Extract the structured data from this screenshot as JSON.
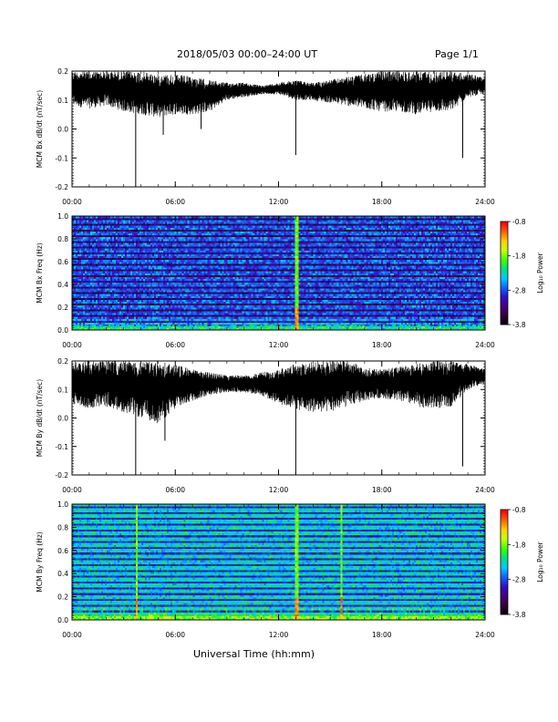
{
  "header": {
    "date_range": "2018/05/03   00:00–24:00 UT",
    "page": "Page 1/1"
  },
  "colors": {
    "trace": "#000000",
    "colormap": [
      "#000000",
      "#30003a",
      "#4a007a",
      "#3010c8",
      "#1060ff",
      "#00c8ff",
      "#00e080",
      "#40ff00",
      "#c8ff00",
      "#ffd000",
      "#ff6000",
      "#ff0000"
    ]
  },
  "chart_data": [
    {
      "type": "line",
      "panel": "bx-timeseries",
      "ylabel": "MCM Bx dB/dt (nT/sec)",
      "xlabel": "",
      "ylim": [
        -0.2,
        0.2
      ],
      "yticks": [
        "0.2",
        "0.1",
        "0.0",
        "-0.1",
        "-0.2"
      ],
      "xticks": [
        "00:00",
        "06:00",
        "12:00",
        "18:00",
        "24:00"
      ],
      "x_hours": [
        0,
        1,
        2,
        3,
        4,
        5,
        6,
        7,
        8,
        9,
        10,
        11,
        12,
        13,
        14,
        15,
        16,
        17,
        18,
        19,
        20,
        21,
        22,
        23,
        24
      ],
      "envelope_upper": [
        0.2,
        0.2,
        0.2,
        0.2,
        0.2,
        0.19,
        0.19,
        0.18,
        0.17,
        0.16,
        0.16,
        0.15,
        0.16,
        0.17,
        0.16,
        0.17,
        0.18,
        0.19,
        0.2,
        0.2,
        0.2,
        0.2,
        0.2,
        0.19,
        0.18
      ],
      "envelope_lower": [
        0.08,
        0.07,
        0.08,
        0.06,
        0.05,
        0.04,
        0.05,
        0.05,
        0.06,
        0.1,
        0.11,
        0.12,
        0.12,
        0.1,
        0.1,
        0.09,
        0.08,
        0.07,
        0.06,
        0.06,
        0.05,
        0.06,
        0.06,
        0.11,
        0.12
      ],
      "spikes": [
        {
          "x": 3.7,
          "y": -0.2
        },
        {
          "x": 13.0,
          "y": -0.09
        },
        {
          "x": 22.7,
          "y": -0.1
        },
        {
          "x": 7.5,
          "y": 0.0
        },
        {
          "x": 5.3,
          "y": -0.02
        }
      ],
      "grid": false
    },
    {
      "type": "heatmap",
      "panel": "bx-spectrogram",
      "ylabel": "MCM Bx Freq (Hz)",
      "ylim": [
        0.0,
        1.0
      ],
      "yticks": [
        "1.0",
        "0.8",
        "0.6",
        "0.4",
        "0.2",
        "0.0"
      ],
      "xticks": [
        "00:00",
        "06:00",
        "12:00",
        "18:00",
        "24:00"
      ],
      "colorbar_label": "Log₁₀ Power",
      "colorbar_ticks": [
        "-0.8",
        "-1.8",
        "-2.8",
        "-3.8"
      ],
      "clim": [
        -3.8,
        -0.8
      ],
      "harmonic_lines_hz": [
        0.05,
        0.1,
        0.15,
        0.2,
        0.25,
        0.3,
        0.35,
        0.4,
        0.45,
        0.5,
        0.55,
        0.6,
        0.65,
        0.7,
        0.75,
        0.8,
        0.85,
        0.9,
        0.95,
        1.0
      ],
      "vertical_events_hours": [
        13.0
      ],
      "base_level": -3.4
    },
    {
      "type": "line",
      "panel": "by-timeseries",
      "ylabel": "MCM By dB/dt (nT/sec)",
      "xlabel": "",
      "ylim": [
        -0.2,
        0.2
      ],
      "yticks": [
        "0.2",
        "0.1",
        "0.0",
        "-0.1",
        "-0.2"
      ],
      "xticks": [
        "00:00",
        "06:00",
        "12:00",
        "18:00",
        "24:00"
      ],
      "x_hours": [
        0,
        1,
        2,
        3,
        4,
        5,
        6,
        7,
        8,
        9,
        10,
        11,
        12,
        13,
        14,
        15,
        16,
        17,
        18,
        19,
        20,
        21,
        22,
        23,
        24
      ],
      "envelope_upper": [
        0.2,
        0.2,
        0.2,
        0.2,
        0.2,
        0.2,
        0.19,
        0.17,
        0.16,
        0.15,
        0.15,
        0.16,
        0.17,
        0.19,
        0.2,
        0.2,
        0.2,
        0.18,
        0.17,
        0.18,
        0.19,
        0.2,
        0.2,
        0.19,
        0.17
      ],
      "envelope_lower": [
        0.05,
        0.03,
        0.04,
        0.02,
        0.0,
        -0.02,
        0.03,
        0.06,
        0.08,
        0.09,
        0.09,
        0.08,
        0.05,
        0.03,
        0.02,
        0.02,
        0.04,
        0.06,
        0.07,
        0.06,
        0.04,
        0.03,
        0.04,
        0.1,
        0.12
      ],
      "spikes": [
        {
          "x": 3.7,
          "y": -0.2
        },
        {
          "x": 13.0,
          "y": -0.2
        },
        {
          "x": 22.7,
          "y": -0.17
        },
        {
          "x": 5.4,
          "y": -0.08
        }
      ],
      "grid": false
    },
    {
      "type": "heatmap",
      "panel": "by-spectrogram",
      "ylabel": "MCM By Freq (Hz)",
      "ylim": [
        0.0,
        1.0
      ],
      "yticks": [
        "1.0",
        "0.8",
        "0.6",
        "0.4",
        "0.2",
        "0.0"
      ],
      "xticks": [
        "00:00",
        "06:00",
        "12:00",
        "18:00",
        "24:00"
      ],
      "colorbar_label": "Log₁₀ Power",
      "colorbar_ticks": [
        "-0.8",
        "-1.8",
        "-2.8",
        "-3.8"
      ],
      "clim": [
        -3.8,
        -0.8
      ],
      "harmonic_lines_hz": [
        0.05,
        0.1,
        0.15,
        0.2,
        0.25,
        0.3,
        0.35,
        0.4,
        0.45,
        0.5,
        0.55,
        0.6,
        0.65,
        0.7,
        0.75,
        0.8,
        0.85,
        0.9,
        0.95,
        1.0
      ],
      "vertical_events_hours": [
        3.7,
        13.0,
        15.6
      ],
      "base_level": -3.0
    }
  ],
  "footer": {
    "xlabel": "Universal Time (hh:mm)"
  }
}
